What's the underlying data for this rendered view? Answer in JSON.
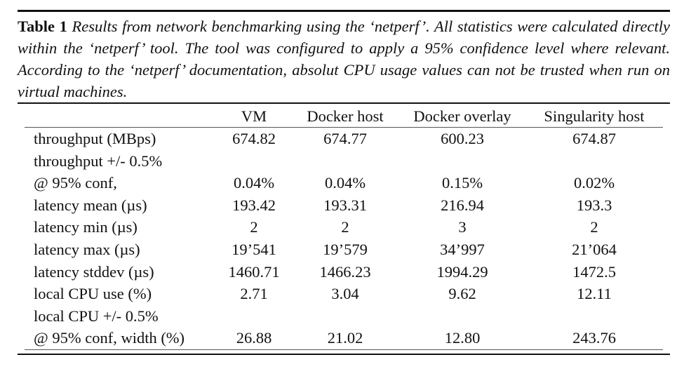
{
  "caption": {
    "label": "Table 1",
    "text": "Results from network benchmarking using the ‘netperf’. All statistics were calculated directly within the ‘netperf’ tool. The tool was configured to apply a 95% confidence level where relevant. According to the ‘netperf’ documentation, absolut CPU usage values can not be trusted when run on virtual machines."
  },
  "table": {
    "headers": [
      "",
      "VM",
      "Docker host",
      "Docker overlay",
      "Singularity host"
    ],
    "rows": [
      [
        "throughput (MBps)",
        "674.82",
        "674.77",
        "600.23",
        "674.87"
      ],
      [
        "throughput +/- 0.5%",
        "",
        "",
        "",
        ""
      ],
      [
        "@ 95% conf,",
        "0.04%",
        "0.04%",
        "0.15%",
        "0.02%"
      ],
      [
        "latency mean (µs)",
        "193.42",
        "193.31",
        "216.94",
        "193.3"
      ],
      [
        "latency min (µs)",
        "2",
        "2",
        "3",
        "2"
      ],
      [
        "latency max (µs)",
        "19’541",
        "19’579",
        "34’997",
        "21’064"
      ],
      [
        "latency stddev (µs)",
        "1460.71",
        "1466.23",
        "1994.29",
        "1472.5"
      ],
      [
        "local CPU use (%)",
        "2.71",
        "3.04",
        "9.62",
        "12.11"
      ],
      [
        "local CPU +/- 0.5%",
        "",
        "",
        "",
        ""
      ],
      [
        "@ 95% conf, width (%)",
        "26.88",
        "21.02",
        "12.80",
        "243.76"
      ]
    ]
  }
}
